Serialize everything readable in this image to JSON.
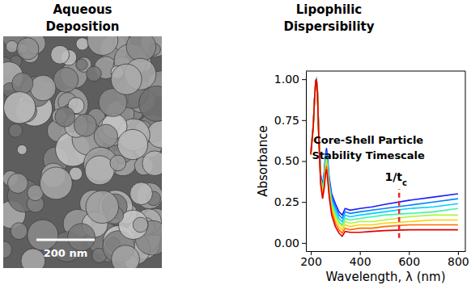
{
  "image_panel": {
    "title": [
      "Aqueous",
      "Deposition"
    ],
    "scale_bar_label": "200 nm"
  },
  "chart_data": {
    "type": "line",
    "title": [
      "Lipophilic",
      "Dispersibility"
    ],
    "x_label": "Wavelength, λ (nm)",
    "y_label": "Absorbance",
    "x": [
      200,
      210,
      215,
      220,
      223,
      227,
      232,
      240,
      248,
      255,
      260,
      264,
      268,
      275,
      285,
      300,
      315,
      328,
      340,
      360,
      400,
      450,
      500,
      600,
      700,
      800
    ],
    "xlim": [
      180,
      830
    ],
    "xticks": [
      200,
      400,
      600,
      800
    ],
    "ylim": [
      -0.05,
      1.05
    ],
    "yticks": [
      {
        "value": 0,
        "label": "0.00"
      },
      0.25,
      {
        "value": 0.5,
        "label": "0.50"
      },
      0.75,
      {
        "value": 1,
        "label": "1.00"
      }
    ],
    "grid": false,
    "series": [
      {
        "color": "#1a1aff",
        "values": [
          0.55,
          0.72,
          0.88,
          0.99,
          1.0,
          0.93,
          0.7,
          0.42,
          0.35,
          0.44,
          0.54,
          0.58,
          0.52,
          0.4,
          0.3,
          0.24,
          0.19,
          0.17,
          0.21,
          0.2,
          0.21,
          0.22,
          0.235,
          0.26,
          0.28,
          0.3
        ]
      },
      {
        "color": "#0080ff",
        "values": [
          0.55,
          0.72,
          0.88,
          0.99,
          1.0,
          0.93,
          0.69,
          0.41,
          0.34,
          0.43,
          0.52,
          0.56,
          0.5,
          0.38,
          0.28,
          0.22,
          0.17,
          0.15,
          0.19,
          0.18,
          0.19,
          0.2,
          0.21,
          0.23,
          0.25,
          0.27
        ]
      },
      {
        "color": "#00d0ff",
        "values": [
          0.55,
          0.72,
          0.88,
          0.99,
          1.0,
          0.93,
          0.69,
          0.4,
          0.33,
          0.41,
          0.51,
          0.54,
          0.49,
          0.37,
          0.26,
          0.2,
          0.15,
          0.13,
          0.17,
          0.16,
          0.17,
          0.18,
          0.19,
          0.21,
          0.22,
          0.24
        ]
      },
      {
        "color": "#3cf5a0",
        "values": [
          0.55,
          0.72,
          0.88,
          0.99,
          1.0,
          0.93,
          0.68,
          0.39,
          0.32,
          0.4,
          0.49,
          0.52,
          0.47,
          0.35,
          0.24,
          0.18,
          0.13,
          0.11,
          0.15,
          0.14,
          0.15,
          0.16,
          0.17,
          0.18,
          0.19,
          0.21
        ]
      },
      {
        "color": "#aef53c",
        "values": [
          0.54,
          0.71,
          0.87,
          0.99,
          1.0,
          0.92,
          0.68,
          0.39,
          0.3,
          0.38,
          0.47,
          0.51,
          0.45,
          0.33,
          0.23,
          0.16,
          0.12,
          0.1,
          0.13,
          0.12,
          0.13,
          0.13,
          0.14,
          0.16,
          0.17,
          0.17
        ]
      },
      {
        "color": "#ffd000",
        "values": [
          0.54,
          0.71,
          0.87,
          0.99,
          1.0,
          0.92,
          0.67,
          0.38,
          0.29,
          0.37,
          0.45,
          0.49,
          0.43,
          0.31,
          0.21,
          0.14,
          0.1,
          0.08,
          0.11,
          0.1,
          0.11,
          0.11,
          0.12,
          0.13,
          0.14,
          0.14
        ]
      },
      {
        "color": "#ff6a00",
        "values": [
          0.54,
          0.71,
          0.87,
          0.99,
          1.0,
          0.92,
          0.67,
          0.37,
          0.28,
          0.35,
          0.44,
          0.47,
          0.42,
          0.3,
          0.19,
          0.12,
          0.08,
          0.06,
          0.09,
          0.08,
          0.09,
          0.09,
          0.1,
          0.11,
          0.11,
          0.11
        ]
      },
      {
        "color": "#e00000",
        "values": [
          0.54,
          0.71,
          0.87,
          0.99,
          1.0,
          0.92,
          0.66,
          0.36,
          0.27,
          0.34,
          0.42,
          0.45,
          0.4,
          0.28,
          0.17,
          0.1,
          0.06,
          0.04,
          0.07,
          0.065,
          0.065,
          0.07,
          0.075,
          0.08,
          0.08,
          0.08
        ]
      }
    ],
    "annotations": [
      {
        "text": [
          "Core-Shell Particle",
          "Stability Timescale"
        ],
        "marker_text": "1/t",
        "marker_subscript": "c",
        "x": 560,
        "y_range": [
          0.03,
          0.33
        ],
        "color": "#e8262a",
        "line_style": "dashed"
      }
    ]
  }
}
